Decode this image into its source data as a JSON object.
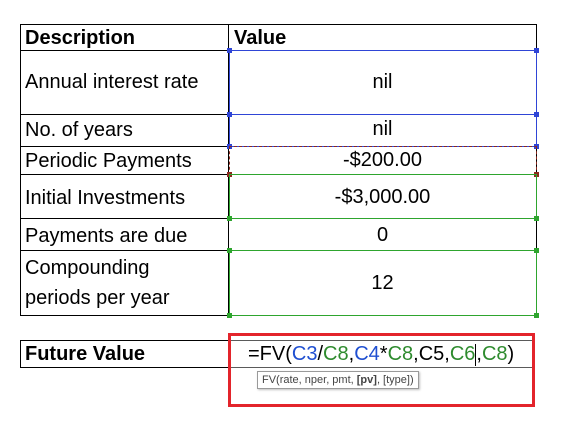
{
  "table": {
    "headers": {
      "description": "Description",
      "value": "Value"
    },
    "rows": [
      {
        "description": "Annual interest rate",
        "value": "nil"
      },
      {
        "description": "No. of years",
        "value": "nil"
      },
      {
        "description": "Periodic Payments",
        "value": "-$200.00"
      },
      {
        "description": "Initial Investments",
        "value": "-$3,000.00"
      },
      {
        "description": "Payments are due",
        "value": "0"
      },
      {
        "description_line1": "Compounding",
        "description_line2": "periods per year",
        "value": "12"
      }
    ]
  },
  "future_value": {
    "label": "Future Value",
    "formula_parts": [
      {
        "text": "=FV(",
        "color": "#000000"
      },
      {
        "text": "C3",
        "color": "#1f4fd1"
      },
      {
        "text": "/",
        "color": "#000000"
      },
      {
        "text": "C8",
        "color": "#2e8b2e"
      },
      {
        "text": ",",
        "color": "#000000"
      },
      {
        "text": "C4",
        "color": "#1f4fd1"
      },
      {
        "text": "*",
        "color": "#000000"
      },
      {
        "text": "C8",
        "color": "#2e8b2e"
      },
      {
        "text": ",C5,",
        "color": "#000000"
      },
      {
        "text": "C6",
        "color": "#2e8b2e"
      },
      {
        "text": ",",
        "color": "#000000"
      },
      {
        "text": "C8",
        "color": "#2e8b2e"
      },
      {
        "text": ")",
        "color": "#000000"
      }
    ]
  },
  "tooltip": {
    "prefix": "FV(rate, nper, pmt, ",
    "bold_part": "[pv]",
    "suffix": ", [type])"
  },
  "colors": {
    "range_blue": "#2f45d6",
    "range_green": "#2ea52e",
    "range_dark_red": "#8b2a1f",
    "highlight_red": "#e3242b"
  }
}
